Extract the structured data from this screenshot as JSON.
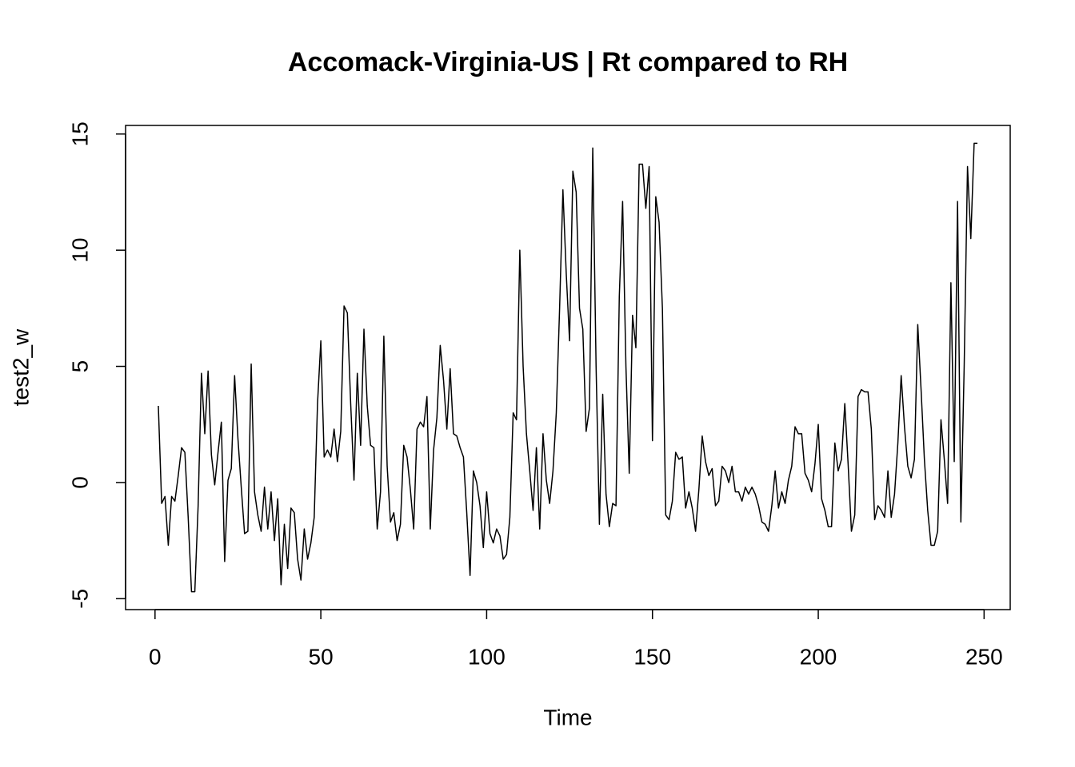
{
  "chart_data": {
    "type": "line",
    "title": "Accomack-Virginia-US | Rt compared to RH",
    "x_label": "Time",
    "y_label": "test2_w",
    "x": [
      1,
      2,
      3,
      4,
      5,
      6,
      7,
      8,
      9,
      10,
      11,
      12,
      13,
      14,
      15,
      16,
      17,
      18,
      19,
      20,
      21,
      22,
      23,
      24,
      25,
      26,
      27,
      28,
      29,
      30,
      31,
      32,
      33,
      34,
      35,
      36,
      37,
      38,
      39,
      40,
      41,
      42,
      43,
      44,
      45,
      46,
      47,
      48,
      49,
      50,
      51,
      52,
      53,
      54,
      55,
      56,
      57,
      58,
      59,
      60,
      61,
      62,
      63,
      64,
      65,
      66,
      67,
      68,
      69,
      70,
      71,
      72,
      73,
      74,
      75,
      76,
      77,
      78,
      79,
      80,
      81,
      82,
      83,
      84,
      85,
      86,
      87,
      88,
      89,
      90,
      91,
      92,
      93,
      94,
      95,
      96,
      97,
      98,
      99,
      100,
      101,
      102,
      103,
      104,
      105,
      106,
      107,
      108,
      109,
      110,
      111,
      112,
      113,
      114,
      115,
      116,
      117,
      118,
      119,
      120,
      121,
      122,
      123,
      124,
      125,
      126,
      127,
      128,
      129,
      130,
      131,
      132,
      133,
      134,
      135,
      136,
      137,
      138,
      139,
      140,
      141,
      142,
      143,
      144,
      145,
      146,
      147,
      148,
      149,
      150,
      151,
      152,
      153,
      154,
      155,
      156,
      157,
      158,
      159,
      160,
      161,
      162,
      163,
      164,
      165,
      166,
      167,
      168,
      169,
      170,
      171,
      172,
      173,
      174,
      175,
      176,
      177,
      178,
      179,
      180,
      181,
      182,
      183,
      184,
      185,
      186,
      187,
      188,
      189,
      190,
      191,
      192,
      193,
      194,
      195,
      196,
      197,
      198,
      199,
      200,
      201,
      202,
      203,
      204,
      205,
      206,
      207,
      208,
      209,
      210,
      211,
      212,
      213,
      214,
      215,
      216,
      217,
      218,
      219,
      220,
      221,
      222,
      223,
      224,
      225,
      226,
      227,
      228,
      229,
      230,
      231,
      232,
      233,
      234,
      235,
      236,
      237,
      238,
      239,
      240,
      241,
      242,
      243,
      244,
      245,
      246,
      247,
      248
    ],
    "series": [
      {
        "name": "test2_w",
        "color": "#000000",
        "values": [
          3.3,
          -0.9,
          -0.6,
          -2.7,
          -0.6,
          -0.8,
          0.3,
          1.5,
          1.3,
          -1.5,
          -4.7,
          -4.7,
          -1.0,
          4.7,
          2.1,
          4.8,
          1.2,
          -0.1,
          1.3,
          2.6,
          -3.4,
          0.1,
          0.6,
          4.6,
          1.9,
          -0.2,
          -2.2,
          -2.1,
          5.1,
          -0.4,
          -1.4,
          -2.1,
          -0.2,
          -2.0,
          -0.4,
          -2.5,
          -0.7,
          -4.4,
          -1.8,
          -3.7,
          -1.1,
          -1.3,
          -3.3,
          -4.2,
          -2.0,
          -3.3,
          -2.6,
          -1.5,
          3.4,
          6.1,
          1.1,
          1.4,
          1.1,
          2.3,
          0.9,
          2.2,
          7.6,
          7.3,
          3.4,
          0.1,
          4.7,
          1.6,
          6.6,
          3.3,
          1.6,
          1.5,
          -2.0,
          -0.4,
          6.3,
          0.7,
          -1.7,
          -1.3,
          -2.5,
          -1.8,
          1.6,
          1.1,
          -0.3,
          -2.0,
          2.3,
          2.6,
          2.4,
          3.7,
          -2.0,
          1.4,
          2.8,
          5.9,
          4.4,
          2.3,
          4.9,
          2.1,
          2.0,
          1.5,
          1.1,
          -1.3,
          -4.0,
          0.5,
          0.0,
          -1.0,
          -2.8,
          -0.4,
          -2.2,
          -2.6,
          -2.0,
          -2.3,
          -3.3,
          -3.1,
          -1.5,
          3.0,
          2.7,
          10.0,
          5.0,
          2.1,
          0.5,
          -1.2,
          1.5,
          -2.0,
          2.1,
          0.1,
          -0.9,
          0.5,
          3.0,
          7.5,
          12.6,
          9.0,
          6.1,
          13.4,
          12.5,
          7.5,
          6.6,
          2.2,
          3.2,
          14.4,
          5.0,
          -1.8,
          3.8,
          -0.5,
          -1.9,
          -0.9,
          -1.0,
          8.0,
          12.1,
          5.0,
          0.4,
          7.2,
          5.8,
          13.7,
          13.7,
          11.8,
          13.6,
          1.8,
          12.3,
          11.2,
          7.5,
          -1.4,
          -1.6,
          -0.8,
          1.3,
          1.0,
          1.1,
          -1.1,
          -0.4,
          -1.1,
          -2.1,
          -0.3,
          2.0,
          0.9,
          0.3,
          0.6,
          -1.0,
          -0.8,
          0.7,
          0.5,
          0.0,
          0.7,
          -0.4,
          -0.4,
          -0.8,
          -0.2,
          -0.5,
          -0.2,
          -0.5,
          -1.0,
          -1.7,
          -1.8,
          -2.1,
          -1.0,
          0.5,
          -1.1,
          -0.4,
          -0.9,
          0.1,
          0.7,
          2.4,
          2.1,
          2.1,
          0.4,
          0.1,
          -0.4,
          0.8,
          2.5,
          -0.7,
          -1.2,
          -1.9,
          -1.9,
          1.7,
          0.5,
          1.0,
          3.4,
          0.8,
          -2.1,
          -1.4,
          3.7,
          4.0,
          3.9,
          3.9,
          2.3,
          -1.6,
          -1.0,
          -1.2,
          -1.5,
          0.5,
          -1.5,
          -0.5,
          1.7,
          4.6,
          2.4,
          0.7,
          0.2,
          1.0,
          6.8,
          4.0,
          1.0,
          -1.2,
          -2.7,
          -2.7,
          -2.1,
          2.7,
          1.0,
          -0.9,
          8.6,
          0.9,
          12.1,
          -1.7,
          5.0,
          13.6,
          10.5,
          14.6,
          14.6
        ]
      }
    ],
    "xlim": [
      -8.88,
      257.88
    ],
    "xticks": [
      0,
      50,
      100,
      150,
      200,
      250
    ],
    "ylim": [
      -5.47,
      15.37
    ],
    "yticks": [
      -5,
      0,
      5,
      10,
      15
    ]
  }
}
